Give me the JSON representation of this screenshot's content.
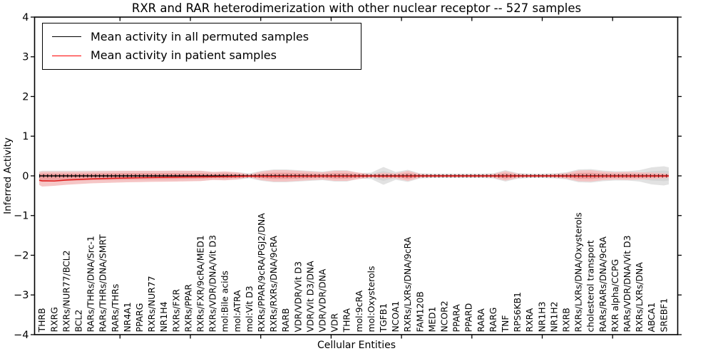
{
  "title": "RXR and RAR heterodimerization with other nuclear receptor -- 527 samples",
  "axes": {
    "xlabel": "Cellular Entities",
    "ylabel": "Inferred Activity",
    "ylim": [
      -4,
      4
    ],
    "ytick_labels": [
      "4",
      "3",
      "2",
      "1",
      "0",
      "−1",
      "−2",
      "−3",
      "−4"
    ],
    "ytick_values": [
      4,
      3,
      2,
      1,
      0,
      -1,
      -2,
      -3,
      -4
    ]
  },
  "legend": {
    "items": [
      {
        "label": "Mean activity in all permuted samples",
        "color": "#000000"
      },
      {
        "label": "Mean activity in patient samples",
        "color": "#ff0000"
      }
    ],
    "position": "upper left"
  },
  "colors": {
    "permuted_line": "#000000",
    "patient_line": "#e02020",
    "permuted_band_outer": "#e2e2e2",
    "permuted_band_inner": "#d5d5d5",
    "patient_band_outer": "#f5c0c0",
    "patient_band_inner": "#efa0a0"
  },
  "chart_data": {
    "type": "area",
    "title": "RXR and RAR heterodimerization with other nuclear receptor -- 527 samples",
    "xlabel": "Cellular Entities",
    "ylabel": "Inferred Activity",
    "ylim": [
      -4,
      4
    ],
    "grid": false,
    "legend_position": "upper left",
    "categories": [
      "THRB",
      "RXRG",
      "RXRs/NUR77/BCL2",
      "BCL2",
      "RARs/THRs/DNA/Src-1",
      "RARs/THRs/DNA/SMRT",
      "RARs/THRs",
      "NR4A1",
      "PPARG",
      "RXRs/NUR77",
      "NR1H4",
      "RXRs/FXR",
      "RXRs/PPAR",
      "RXRs/FXR/9cRA/MED1",
      "RXRs/VDR/DNA/Vit D3",
      "mol:Bile acids",
      "mol:ATRA",
      "mol:Vit D3",
      "RXRs/PPAR/9cRA/PGJ2/DNA",
      "RXRs/RXRs/DNA/9cRA",
      "RARB",
      "VDR/VDR/Vit D3",
      "VDR/Vit D3/DNA",
      "VDR/VDR/DNA",
      "VDR",
      "THRA",
      "mol:9cRA",
      "mol:Oxysterols",
      "TGFB1",
      "NCOA1",
      "RXRs/LXRs/DNA/9cRA",
      "FAM120B",
      "MED1",
      "NCOR2",
      "PPARA",
      "PPARD",
      "RARA",
      "RARG",
      "TNF",
      "RPS6KB1",
      "RXRA",
      "NR1H3",
      "NR1H2",
      "RXRB",
      "RXRs/LXRs/DNA/Oxysterols",
      "cholesterol transport",
      "RARs/RARs/DNA/9cRA",
      "RXR alpha/CCPG",
      "RARs/VDR/DNA/Vit D3",
      "RXRs/LXRs/DNA",
      "ABCA1",
      "SREBF1"
    ],
    "series": [
      {
        "name": "Mean activity in all permuted samples",
        "kind": "line",
        "values": [
          0,
          0,
          0,
          0,
          0,
          0,
          0,
          0,
          0,
          0,
          0,
          0,
          0,
          0,
          0,
          0,
          0,
          0,
          0,
          0,
          0,
          0,
          0,
          0,
          0,
          0,
          0,
          0,
          0,
          0,
          0,
          0,
          0,
          0,
          0,
          0,
          0,
          0,
          0,
          0,
          0,
          0,
          0,
          0,
          0,
          0,
          0,
          0,
          0,
          0,
          0,
          0
        ]
      },
      {
        "name": "Mean activity in patient samples",
        "kind": "line",
        "values": [
          -0.125,
          -0.13,
          -0.105,
          -0.09,
          -0.078,
          -0.068,
          -0.06,
          -0.053,
          -0.047,
          -0.042,
          -0.037,
          -0.033,
          -0.029,
          -0.026,
          -0.023,
          -0.02,
          -0.014,
          -0.007,
          -0.01,
          -0.012,
          -0.01,
          -0.009,
          -0.008,
          -0.006,
          -0.008,
          -0.008,
          -0.005,
          -0.004,
          -0.008,
          -0.005,
          -0.008,
          -0.004,
          -0.004,
          -0.004,
          -0.004,
          -0.004,
          -0.004,
          -0.004,
          -0.006,
          -0.004,
          -0.004,
          -0.004,
          -0.004,
          -0.005,
          -0.008,
          -0.008,
          -0.006,
          -0.005,
          -0.006,
          -0.005,
          -0.004,
          -0.003
        ]
      },
      {
        "name": "Permuted samples spread (symmetric half-width around 0)",
        "kind": "band",
        "half_width": [
          0.13,
          0.13,
          0.13,
          0.13,
          0.13,
          0.13,
          0.13,
          0.13,
          0.13,
          0.13,
          0.13,
          0.13,
          0.13,
          0.13,
          0.1,
          0.1,
          0.095,
          0.063,
          0.126,
          0.161,
          0.161,
          0.143,
          0.126,
          0.108,
          0.143,
          0.143,
          0.072,
          0.081,
          0.224,
          0.099,
          0.152,
          0.063,
          0.054,
          0.054,
          0.054,
          0.054,
          0.054,
          0.063,
          0.143,
          0.072,
          0.054,
          0.054,
          0.063,
          0.09,
          0.161,
          0.17,
          0.135,
          0.117,
          0.117,
          0.143,
          0.215,
          0.242
        ]
      },
      {
        "name": "Patient samples spread (upper / lower extent around 0)",
        "kind": "band",
        "upper": [
          0.108,
          0.108,
          0.108,
          0.108,
          0.111,
          0.117,
          0.122,
          0.126,
          0.126,
          0.126,
          0.126,
          0.129,
          0.126,
          0.126,
          0.099,
          0.113,
          0.09,
          0.039,
          0.108,
          0.143,
          0.143,
          0.126,
          0.108,
          0.09,
          0.126,
          0.126,
          0.081,
          0.045,
          0.081,
          0.063,
          0.126,
          0.05,
          0.039,
          0.039,
          0.039,
          0.039,
          0.039,
          0.047,
          0.117,
          0.054,
          0.039,
          0.039,
          0.045,
          0.072,
          0.135,
          0.143,
          0.108,
          0.09,
          0.099,
          0.09,
          0.081,
          0.068
        ],
        "lower": [
          0.269,
          0.251,
          0.224,
          0.206,
          0.188,
          0.179,
          0.17,
          0.161,
          0.156,
          0.151,
          0.147,
          0.143,
          0.136,
          0.131,
          0.104,
          0.113,
          0.09,
          0.039,
          0.108,
          0.143,
          0.143,
          0.126,
          0.108,
          0.09,
          0.126,
          0.126,
          0.081,
          0.045,
          0.072,
          0.063,
          0.126,
          0.05,
          0.039,
          0.039,
          0.039,
          0.039,
          0.039,
          0.047,
          0.117,
          0.054,
          0.039,
          0.039,
          0.045,
          0.072,
          0.135,
          0.143,
          0.108,
          0.09,
          0.099,
          0.09,
          0.081,
          0.068
        ]
      }
    ]
  }
}
